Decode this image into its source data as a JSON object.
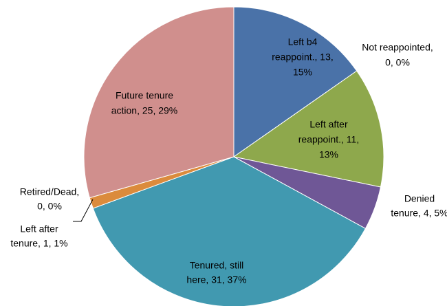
{
  "chart_data": {
    "type": "pie",
    "values": [
      13,
      0,
      11,
      4,
      31,
      1,
      0,
      25
    ],
    "value_labels": [
      [
        "Left b4",
        "reappoint., 13,",
        "15%"
      ],
      [
        "Not reappointed,",
        "0, 0%"
      ],
      [
        "Left after",
        "reappoint., 11,",
        "13%"
      ],
      [
        "Denied",
        "tenure, 4, 5%"
      ],
      [
        "Tenured, still",
        "here, 31, 37%"
      ],
      [
        "Left after",
        "tenure, 1, 1%"
      ],
      [
        "Retired/Dead,",
        "0, 0%"
      ],
      [
        "Future tenure",
        "action, 25, 29%"
      ]
    ],
    "colors": [
      "#4a72a8",
      "#b8453f",
      "#8ea84c",
      "#6f5796",
      "#4199b0",
      "#db8b3c",
      "#7d9ec8",
      "#d08f8d"
    ]
  }
}
